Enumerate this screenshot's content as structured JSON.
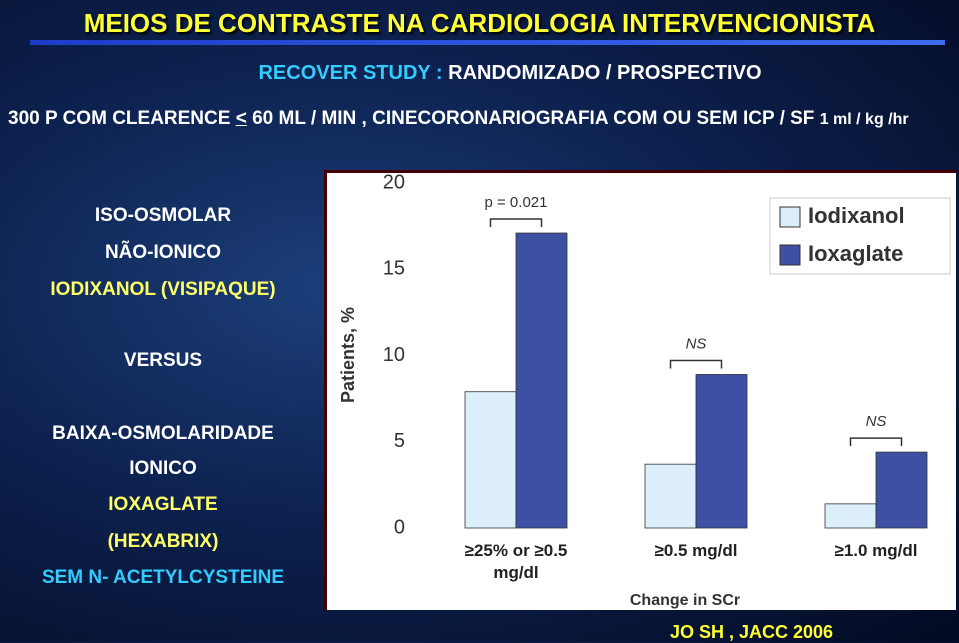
{
  "slide": {
    "title": "MEIOS DE CONTRASTE NA CARDIOLOGIA INTERVENCIONISTA",
    "study": [
      "RECOVER STUDY :",
      "RANDOMIZADO / PROSPECTIVO"
    ],
    "intro": [
      "300 P  COM  CLEARENCE",
      "<",
      "60 ML / MIN  , CINECORONARIOGRAFIA COM OU SEM ICP  / SF",
      "1 ml / kg /hr"
    ],
    "left_list": [
      {
        "text": "ISO-OSMOLAR",
        "color": "#ffffff"
      },
      {
        "text": "NÃO-IONICO",
        "color": "#ffffff"
      },
      {
        "text": "IODIXANOL (VISIPAQUE)",
        "color": "#ffff66"
      },
      {
        "text": "VERSUS",
        "color": "#ffffff"
      },
      {
        "text": "BAIXA-OSMOLARIDADE",
        "color": "#ffffff"
      },
      {
        "text": "IONICO",
        "color": "#ffffff"
      },
      {
        "text": "IOXAGLATE",
        "color": "#ffff66"
      },
      {
        "text": "(HEXABRIX)",
        "color": "#ffff66"
      },
      {
        "text": "SEM N- ACETYLCYSTEINE",
        "color": "#33ccff"
      }
    ],
    "citation": "JO SH , JACC 2006"
  },
  "chart_data": {
    "type": "bar",
    "categories": [
      "≥25% or ≥0.5 mg/dl",
      "≥0.5 mg/dl",
      "≥1.0 mg/dl"
    ],
    "series": [
      {
        "name": "Iodixanol",
        "color": "#dceefa",
        "values": [
          7.9,
          3.7,
          1.4
        ]
      },
      {
        "name": "Ioxaglate",
        "color": "#3d50a3",
        "values": [
          17.1,
          8.9,
          4.4
        ]
      }
    ],
    "annotations": [
      "p = 0.021",
      "NS",
      "NS"
    ],
    "x_label": "Change in SCr",
    "y_label": "Patients, %",
    "ylim": [
      0,
      20
    ],
    "yticks": [
      0,
      5,
      10,
      15,
      20
    ],
    "legend": "upper right"
  }
}
